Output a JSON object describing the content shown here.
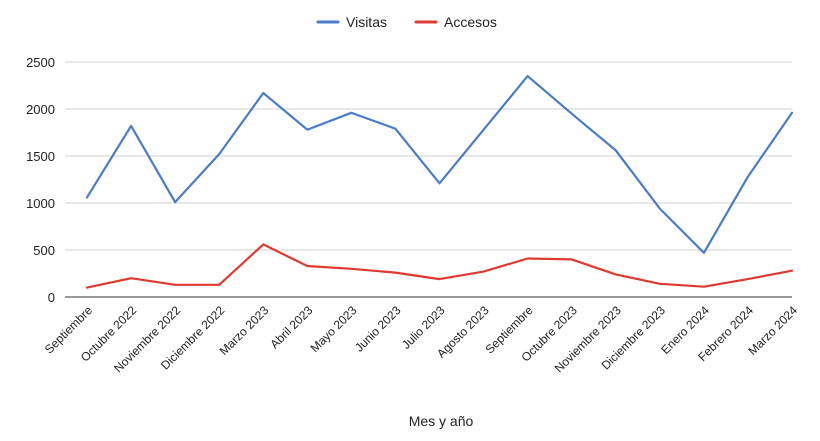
{
  "chart_data": {
    "type": "line",
    "title": "",
    "xlabel": "Mes y año",
    "ylabel": "",
    "ylim": [
      0,
      2500
    ],
    "yticks": [
      0,
      500,
      1000,
      1500,
      2000,
      2500
    ],
    "grid": true,
    "legend_position": "top-center",
    "categories": [
      "Septiembre",
      "Octubre 2022",
      "Noviembre 2022",
      "Diciembre 2022",
      "Marzo 2023",
      "Abril 2023",
      "Mayo 2023",
      "Junio 2023",
      "Julio 2023",
      "Agosto 2023",
      "Septiembre",
      "Octubre 2023",
      "Noviembre 2023",
      "Diciembre 2023",
      "Enero 2024",
      "Febrero 2024",
      "Marzo 2024"
    ],
    "series": [
      {
        "name": "Visitas",
        "color": "#4a7cc7",
        "values": [
          1060,
          1820,
          1010,
          1520,
          2170,
          1780,
          1960,
          1790,
          1210,
          1780,
          2350,
          1950,
          1560,
          940,
          470,
          1280,
          1960
        ]
      },
      {
        "name": "Accesos",
        "color": "#e0392f",
        "values": [
          100,
          200,
          130,
          130,
          560,
          330,
          300,
          260,
          190,
          270,
          410,
          400,
          240,
          140,
          110,
          190,
          280
        ]
      }
    ]
  }
}
